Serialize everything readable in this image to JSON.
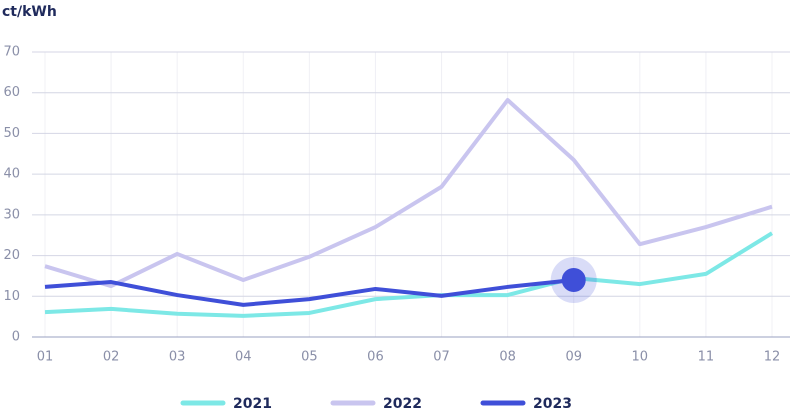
{
  "chart_data": {
    "type": "line",
    "y_label": "ct/kWh",
    "categories": [
      "01",
      "02",
      "03",
      "04",
      "05",
      "06",
      "07",
      "08",
      "09",
      "10",
      "11",
      "12"
    ],
    "series": [
      {
        "name": "2021",
        "color": "#7de8e6",
        "values": [
          6.1,
          6.9,
          5.7,
          5.2,
          5.9,
          9.3,
          10.3,
          10.3,
          14.5,
          13.0,
          15.5,
          25.5
        ]
      },
      {
        "name": "2022",
        "color": "#c9c5ef",
        "values": [
          17.4,
          12.5,
          20.4,
          14.0,
          19.7,
          27.0,
          36.9,
          58.2,
          43.5,
          22.8,
          27.0,
          32.0
        ]
      },
      {
        "name": "2023",
        "color": "#3f4fd8",
        "values": [
          12.3,
          13.5,
          10.3,
          7.9,
          9.3,
          11.8,
          10.1,
          12.3,
          14.0,
          null,
          null,
          null
        ]
      }
    ],
    "ylim": [
      0,
      70
    ],
    "yticks": [
      0,
      10,
      20,
      30,
      40,
      50,
      60,
      70
    ],
    "grid": true,
    "legend": "bottom"
  }
}
